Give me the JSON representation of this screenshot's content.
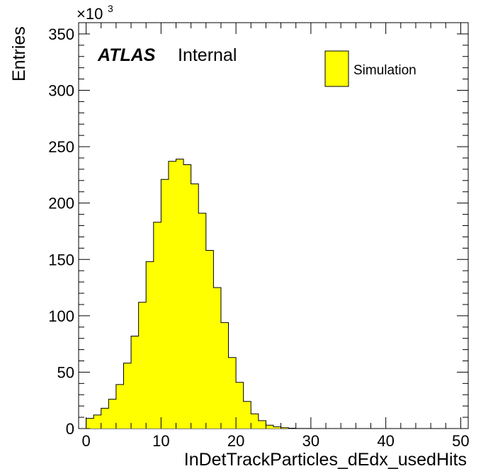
{
  "chart_data": {
    "type": "bar",
    "style": "histogram",
    "xlabel": "InDetTrackParticles_dEdx_usedHits",
    "ylabel": "Entries",
    "y_multiplier": "×10",
    "y_multiplier_exponent": "3",
    "xlim": [
      -1,
      51
    ],
    "ylim": [
      0,
      360
    ],
    "x_ticks": [
      0,
      10,
      20,
      30,
      40,
      50
    ],
    "y_ticks": [
      0,
      50,
      100,
      150,
      200,
      250,
      300,
      350
    ],
    "bin_width": 1,
    "bin_edges_start": -1,
    "values": [
      0,
      9,
      12,
      18,
      26,
      39,
      58,
      82,
      112,
      148,
      183,
      221,
      237,
      239,
      234,
      217,
      191,
      158,
      125,
      94,
      63,
      41,
      24,
      13,
      7,
      3,
      1.5,
      0.8,
      0.3,
      0.1,
      0.05,
      0,
      0,
      0,
      0,
      0,
      0,
      0,
      0,
      0,
      0,
      0,
      0,
      0,
      0,
      0,
      0,
      0,
      0,
      0,
      0,
      0
    ],
    "grid": false,
    "legend_position": "top-right",
    "series": [
      {
        "name": "Simulation",
        "color": "#ffff00"
      }
    ]
  },
  "annotation": {
    "atlas": "ATLAS",
    "internal": "Internal"
  }
}
